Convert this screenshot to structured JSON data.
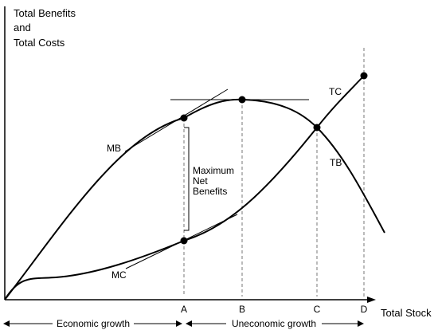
{
  "axes": {
    "y_title": [
      "Total Benefits",
      "and",
      "Total Costs"
    ],
    "x_title": "Total Stock"
  },
  "ticks": [
    "A",
    "B",
    "C",
    "D"
  ],
  "curves": {
    "tb": "TB",
    "tc": "TC",
    "mb": "MB",
    "mc": "MC"
  },
  "annotation": [
    "Maximum",
    "Net",
    "Benefits"
  ],
  "regions": {
    "economic": "Economic growth",
    "uneconomic": "Uneconomic growth"
  }
}
